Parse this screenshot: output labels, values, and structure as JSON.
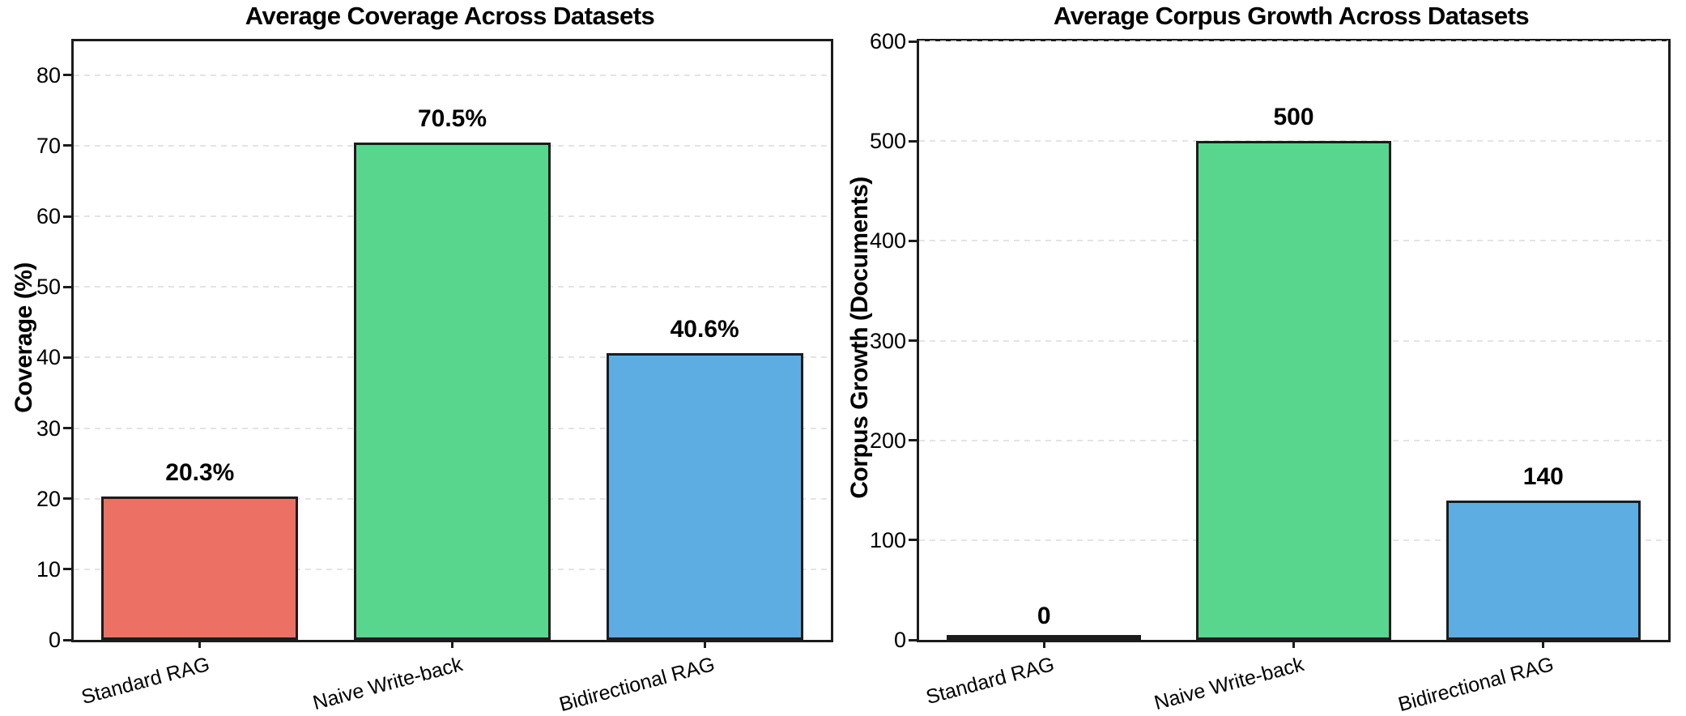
{
  "figure": {
    "background": "#ffffff"
  },
  "style": {
    "grid_color": "#e4e4e4",
    "spine_color": "#1c1c1c",
    "text_color": "#000000",
    "bar_edge_color": "#1c1c1c"
  },
  "chart_data": [
    {
      "type": "bar",
      "title": "Average Coverage Across Datasets",
      "ylabel": "Coverage (%)",
      "xlabel": "",
      "categories": [
        "Standard RAG",
        "Naive Write-back",
        "Bidirectional RAG"
      ],
      "values": [
        20.3,
        70.5,
        40.6
      ],
      "value_labels": [
        "20.3%",
        "70.5%",
        "40.6%"
      ],
      "bar_colors": [
        "#EC7063",
        "#58D68D",
        "#5DADE2"
      ],
      "yticks": [
        0,
        10,
        20,
        30,
        40,
        50,
        60,
        70,
        80
      ],
      "ylim": [
        0,
        84.8
      ],
      "grid": "dashed-horizontal",
      "legend": "none",
      "xtick_rotation_deg": 15
    },
    {
      "type": "bar",
      "title": "Average Corpus Growth Across Datasets",
      "ylabel": "Corpus Growth (Documents)",
      "xlabel": "",
      "categories": [
        "Standard RAG",
        "Naive Write-back",
        "Bidirectional RAG"
      ],
      "values": [
        0,
        500,
        140
      ],
      "value_labels": [
        "0",
        "500",
        "140"
      ],
      "bar_colors": [
        "#EC7063",
        "#58D68D",
        "#5DADE2"
      ],
      "yticks": [
        0,
        100,
        200,
        300,
        400,
        500,
        600
      ],
      "ylim": [
        0,
        600
      ],
      "grid": "dashed-horizontal",
      "legend": "none",
      "xtick_rotation_deg": 15
    }
  ]
}
